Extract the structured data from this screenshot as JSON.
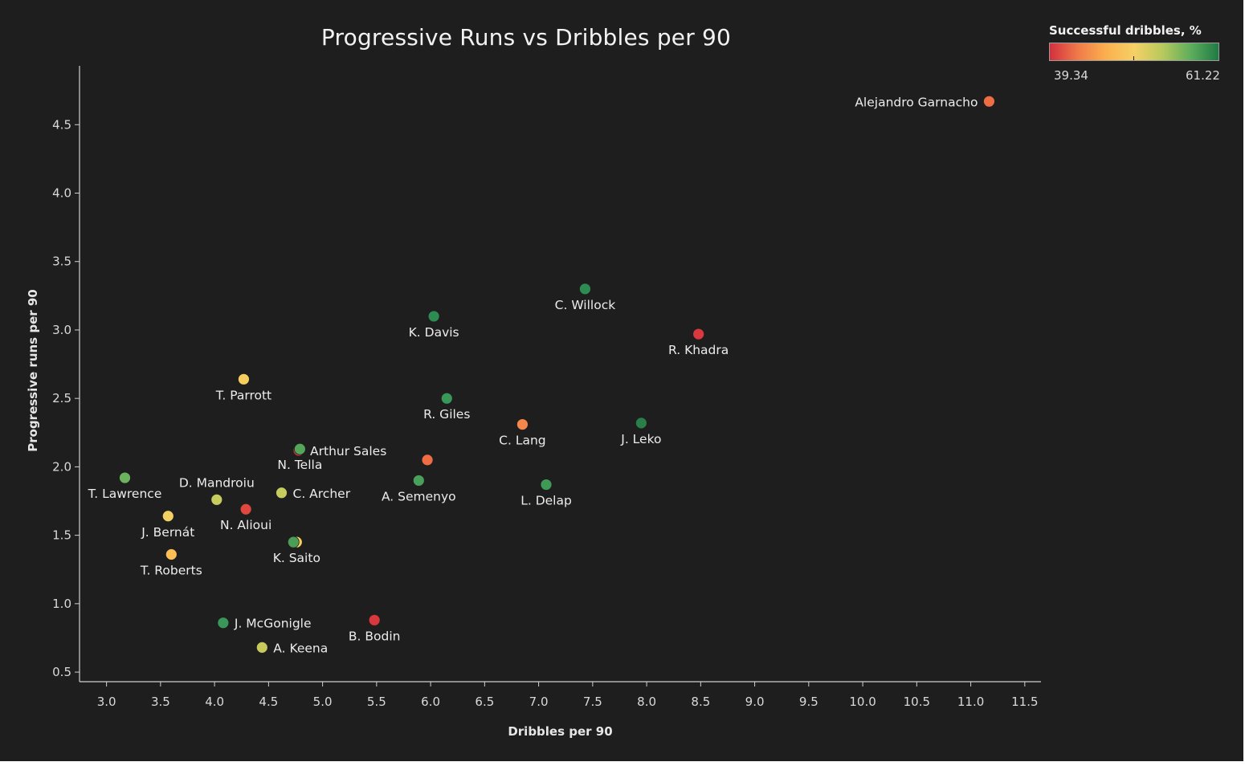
{
  "chart_data": {
    "type": "scatter",
    "title": "Progressive Runs vs Dribbles per 90",
    "xlabel": "Dribbles per 90",
    "ylabel": "Progressive runs per 90",
    "xlim": [
      2.75,
      11.65
    ],
    "ylim": [
      0.43,
      4.93
    ],
    "x_ticks": [
      "3.0",
      "3.5",
      "4.0",
      "4.5",
      "5.0",
      "5.5",
      "6.0",
      "6.5",
      "7.0",
      "7.5",
      "8.0",
      "8.5",
      "9.0",
      "9.5",
      "10.0",
      "10.5",
      "11.0",
      "11.5"
    ],
    "y_ticks": [
      "0.5",
      "1.0",
      "1.5",
      "2.0",
      "2.5",
      "3.0",
      "3.5",
      "4.0",
      "4.5"
    ],
    "legend": {
      "title": "Successful dribbles, %",
      "min_label": "39.34",
      "max_label": "61.22",
      "min": 39.34,
      "max": 61.22,
      "placement": "top-right",
      "color_stops": [
        "#d3303f",
        "#f07a4a",
        "#fbb04e",
        "#f5d066",
        "#b9c95d",
        "#5eae5c",
        "#1f7a45"
      ]
    },
    "points": [
      {
        "name": "Alejandro Garnacho",
        "x": 11.17,
        "y": 4.67,
        "color": "#ef6d45",
        "label_pos": "left"
      },
      {
        "name": "C. Willock",
        "x": 7.43,
        "y": 3.3,
        "color": "#2e8b52",
        "label_pos": "below"
      },
      {
        "name": "K. Davis",
        "x": 6.03,
        "y": 3.1,
        "color": "#2e8b52",
        "label_pos": "below"
      },
      {
        "name": "R. Khadra",
        "x": 8.48,
        "y": 2.97,
        "color": "#d9383f",
        "label_pos": "below"
      },
      {
        "name": "T. Parrott",
        "x": 4.27,
        "y": 2.64,
        "color": "#f7cd5d",
        "label_pos": "below"
      },
      {
        "name": "R. Giles",
        "x": 6.15,
        "y": 2.5,
        "color": "#3a975a",
        "label_pos": "below"
      },
      {
        "name": "C. Lang",
        "x": 6.85,
        "y": 2.31,
        "color": "#f3874c",
        "label_pos": "below"
      },
      {
        "name": "J. Leko",
        "x": 7.95,
        "y": 2.32,
        "color": "#2a7f49",
        "label_pos": "below"
      },
      {
        "name": "Arthur Sales",
        "x": 4.78,
        "y": 2.12,
        "color": "#d9383f",
        "label_pos": "right"
      },
      {
        "name": "N. Tella",
        "x": 4.79,
        "y": 2.13,
        "color": "#55a65a",
        "label_pos": "below"
      },
      {
        "name": "A. Semenyo",
        "x": 5.89,
        "y": 1.9,
        "color": "#49a05a",
        "label_pos": "below"
      },
      {
        "name": "T. Lawrence",
        "x": 3.17,
        "y": 1.92,
        "color": "#6cb35e",
        "label_pos": "below"
      },
      {
        "name": "D. Mandroiu",
        "x": 4.02,
        "y": 1.76,
        "color": "#c7cc5f",
        "label_pos": "above"
      },
      {
        "name": "C. Archer",
        "x": 4.62,
        "y": 1.81,
        "color": "#c7cc5f",
        "label_pos": "right"
      },
      {
        "name": "L. Delap",
        "x": 7.07,
        "y": 1.87,
        "color": "#3f9a58",
        "label_pos": "below"
      },
      {
        "name": "N. Alioui",
        "x": 4.29,
        "y": 1.69,
        "color": "#e0473f",
        "label_pos": "below"
      },
      {
        "name": "J. Bernát",
        "x": 3.57,
        "y": 1.64,
        "color": "#f2d064",
        "label_pos": "below"
      },
      {
        "name": "K. Saito",
        "x": 4.76,
        "y": 1.45,
        "color": "#f7cd5d",
        "label_pos": "below"
      },
      {
        "name": "T. Roberts",
        "x": 3.6,
        "y": 1.36,
        "color": "#fbbf55",
        "label_pos": "below"
      },
      {
        "name": "",
        "x": 5.97,
        "y": 2.05,
        "color": "#ef6d45",
        "label_pos": "none"
      },
      {
        "name": "",
        "x": 4.73,
        "y": 1.45,
        "color": "#4a9e58",
        "label_pos": "none"
      },
      {
        "name": "J. McGonigle",
        "x": 4.08,
        "y": 0.86,
        "color": "#3a975a",
        "label_pos": "right"
      },
      {
        "name": "B. Bodin",
        "x": 5.48,
        "y": 0.88,
        "color": "#d9383f",
        "label_pos": "below"
      },
      {
        "name": "A. Keena",
        "x": 4.44,
        "y": 0.68,
        "color": "#c8c95c",
        "label_pos": "right"
      }
    ],
    "grid": false
  }
}
